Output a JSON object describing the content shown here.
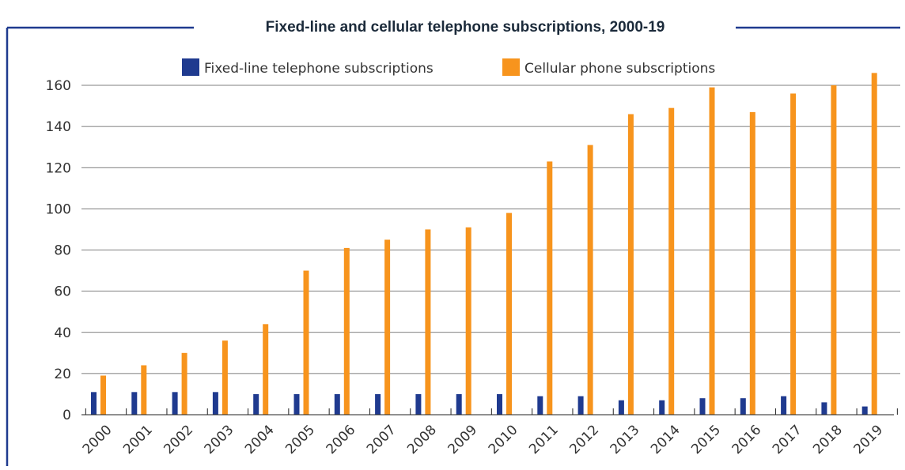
{
  "colors": {
    "frame": "#1f3a8f",
    "fixed_line": "#1f3a8f",
    "cellular": "#f7941d",
    "grid": "#555555",
    "axis": "#222222"
  },
  "chart_data": {
    "type": "bar",
    "title": "Fixed-line and cellular telephone subscriptions, 2000-19",
    "xlabel": "",
    "ylabel": "",
    "categories": [
      "2000",
      "2001",
      "2002",
      "2003",
      "2004",
      "2005",
      "2006",
      "2007",
      "2008",
      "2009",
      "2010",
      "2011",
      "2012",
      "2013",
      "2014",
      "2015",
      "2016",
      "2017",
      "2018",
      "2019"
    ],
    "series": [
      {
        "name": "Fixed-line telephone subscriptions",
        "color": "#1f3a8f",
        "values": [
          11,
          11,
          11,
          11,
          10,
          10,
          10,
          10,
          10,
          10,
          10,
          9,
          9,
          7,
          7,
          8,
          8,
          9,
          6,
          4
        ]
      },
      {
        "name": "Cellular phone subscriptions",
        "color": "#f7941d",
        "values": [
          19,
          24,
          30,
          36,
          44,
          70,
          81,
          85,
          90,
          91,
          98,
          123,
          131,
          146,
          149,
          159,
          147,
          156,
          160,
          166
        ]
      }
    ],
    "ylim": [
      0,
      160
    ],
    "yticks": [
      0,
      20,
      40,
      60,
      80,
      100,
      120,
      140,
      160
    ],
    "grid": "horizontal",
    "legend_position": "top"
  }
}
